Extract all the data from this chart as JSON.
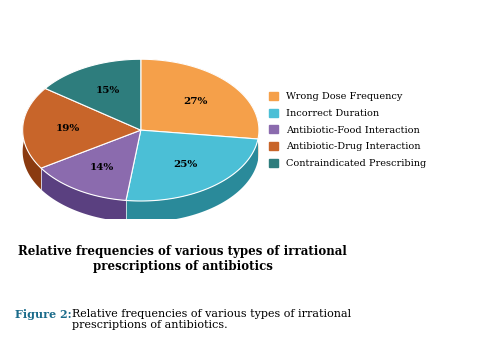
{
  "labels": [
    "Wrong Dose Frequency",
    "Incorrect Duration",
    "Antibiotic-Food Interaction",
    "Antibiotic-Drug Interaction",
    "Contraindicated Prescribing"
  ],
  "values": [
    27,
    25,
    14,
    19,
    15
  ],
  "colors": [
    "#F5A04A",
    "#4BBFD6",
    "#8B6BAE",
    "#C8652A",
    "#2E7D7D"
  ],
  "shadow_colors": [
    "#C07830",
    "#2A8A9A",
    "#5A4080",
    "#8A3A10",
    "#1A4A4A"
  ],
  "title": "Relative frequencies of various types of irrational\nprescriptions of antibiotics",
  "title_fontsize": 8.5,
  "figure_caption_bold": "Figure 2:",
  "figure_caption_rest": "  Relative frequencies of various types of irrational\nprescriptions of antibiotics.",
  "caption_fontsize": 8,
  "caption_color": "#1a6b8a",
  "background_color": "#ffffff",
  "startangle": 90,
  "legend_fontsize": 7
}
